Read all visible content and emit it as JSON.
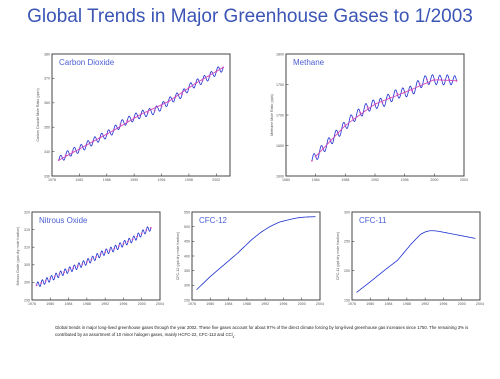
{
  "title": "Global Trends in Major Greenhouse Gases to 1/2003",
  "caption": {
    "text": "Global trends in major long-lived greenhouse gases through the year 2002. These five gases account for about 97% of the direct climate forcing by long-lived greenhouse gas increases since 1750. The remaining 3% is contributed by an assortment of 10 minor halogen gases, mainly HCFC-22, CFC-113 and CCl",
    "subscript": "4",
    "end": "."
  },
  "colors": {
    "title": "#3b55b5",
    "line": "#1c2fd0",
    "fit": "#d04ab8",
    "label": "#4a5fd0"
  },
  "chart_data": [
    {
      "type": "line",
      "series_label": "Carbon Dioxide",
      "ylabel": "Carbon Dioxide Mole Ratio (ppm)",
      "xlim": [
        1978,
        2004
      ],
      "ylim": [
        330,
        380
      ],
      "xticks": [
        "1978",
        "1982",
        "1986",
        "1990",
        "1994",
        "1998",
        "2002"
      ],
      "yticks": [
        "330",
        "340",
        "350",
        "360",
        "370",
        "380"
      ],
      "series": [
        {
          "role": "monthly",
          "x": [
            1979,
            1980,
            1981,
            1982,
            1983,
            1984,
            1985,
            1986,
            1987,
            1988,
            1989,
            1990,
            1991,
            1992,
            1993,
            1994,
            1995,
            1996,
            1997,
            1998,
            1999,
            2000,
            2001,
            2002,
            2003
          ],
          "y": [
            336.5,
            338.5,
            340.0,
            341.0,
            342.6,
            344.2,
            345.7,
            347.0,
            348.7,
            351.2,
            352.7,
            354.0,
            355.3,
            356.0,
            356.8,
            358.5,
            360.5,
            362.3,
            363.5,
            366.3,
            368.0,
            369.3,
            370.8,
            372.8,
            374.5
          ],
          "seasonal_amplitude": 1.5
        },
        {
          "role": "trend",
          "x": [
            1979,
            1983,
            1987,
            1991,
            1995,
            1999,
            2003
          ],
          "y": [
            336.5,
            342.6,
            348.7,
            355.3,
            360.5,
            368.0,
            374.5
          ]
        }
      ]
    },
    {
      "type": "line",
      "series_label": "Methane",
      "ylabel": "Methane Mole Ratio (ppb)",
      "xlim": [
        1980,
        2004
      ],
      "ylim": [
        1600,
        1800
      ],
      "xticks": [
        "1980",
        "1984",
        "1988",
        "1992",
        "1996",
        "2000",
        "2004"
      ],
      "yticks": [
        "1600",
        "1650",
        "1700",
        "1750",
        "1800"
      ],
      "series": [
        {
          "role": "monthly",
          "x": [
            1983.5,
            1984,
            1985,
            1986,
            1987,
            1988,
            1989,
            1990,
            1991,
            1992,
            1993,
            1994,
            1995,
            1996,
            1997,
            1998,
            1999,
            2000,
            2001,
            2002,
            2003
          ],
          "y": [
            1625,
            1632,
            1645,
            1658,
            1670,
            1683,
            1695,
            1704,
            1713,
            1718,
            1720,
            1728,
            1735,
            1737,
            1740,
            1751,
            1758,
            1758,
            1757,
            1758,
            1756
          ],
          "seasonal_amplitude": 8
        },
        {
          "role": "trend",
          "x": [
            1984,
            1988,
            1992,
            1996,
            2000,
            2003
          ],
          "y": [
            1632,
            1683,
            1718,
            1737,
            1758,
            1756
          ]
        }
      ]
    },
    {
      "type": "line",
      "series_label": "Nitrous Oxide",
      "ylabel": "Nitrous Oxide (ppb dry mole fraction)",
      "xlim": [
        1976,
        2004
      ],
      "ylim": [
        295,
        320
      ],
      "xticks": [
        "1976",
        "1980",
        "1984",
        "1988",
        "1992",
        "1996",
        "2000",
        "2004"
      ],
      "yticks": [
        "295",
        "300",
        "305",
        "310",
        "315",
        "320"
      ],
      "series": [
        {
          "role": "monthly",
          "x": [
            1977,
            1978,
            1979,
            1980,
            1981,
            1982,
            1983,
            1984,
            1985,
            1986,
            1987,
            1988,
            1989,
            1990,
            1991,
            1992,
            1993,
            1994,
            1995,
            1996,
            1997,
            1998,
            1999,
            2000,
            2001,
            2002
          ],
          "y": [
            299.2,
            299.8,
            300.4,
            301.0,
            301.7,
            302.3,
            302.9,
            303.5,
            304.0,
            304.6,
            305.2,
            305.8,
            306.5,
            307.2,
            308.0,
            308.6,
            309.1,
            309.6,
            310.3,
            311.0,
            311.6,
            312.2,
            313.0,
            313.9,
            314.8,
            315.5
          ],
          "seasonal_amplitude": 0.8
        }
      ]
    },
    {
      "type": "line",
      "series_label": "CFC-12",
      "ylabel": "CFC-12 (ppt dry mole fraction)",
      "xlim": [
        1976,
        2004
      ],
      "ylim": [
        250,
        550
      ],
      "xticks": [
        "1976",
        "1980",
        "1984",
        "1988",
        "1992",
        "1996",
        "2000",
        "2004"
      ],
      "yticks": [
        "250",
        "300",
        "350",
        "400",
        "450",
        "500",
        "550"
      ],
      "series": [
        {
          "role": "global mean",
          "x": [
            1977,
            1980,
            1983,
            1986,
            1989,
            1991,
            1993,
            1995,
            1997,
            1999,
            2001,
            2003
          ],
          "y": [
            285,
            330,
            370,
            410,
            455,
            480,
            500,
            515,
            523,
            530,
            533,
            534
          ]
        }
      ]
    },
    {
      "type": "line",
      "series_label": "CFC-11",
      "ylabel": "CFC-11 (ppt dry mole fraction)",
      "xlim": [
        1976,
        2004
      ],
      "ylim": [
        150,
        300
      ],
      "xticks": [
        "1976",
        "1980",
        "1984",
        "1988",
        "1992",
        "1996",
        "2000",
        "2004"
      ],
      "yticks": [
        "150",
        "200",
        "250",
        "300"
      ],
      "series": [
        {
          "role": "global mean",
          "x": [
            1977,
            1980,
            1983,
            1986,
            1989,
            1991,
            1992,
            1993,
            1994,
            1995,
            1997,
            1999,
            2001,
            2003
          ],
          "y": [
            163,
            181,
            200,
            218,
            246,
            262,
            266,
            268,
            268,
            267,
            264,
            261,
            258,
            255
          ]
        }
      ]
    }
  ]
}
